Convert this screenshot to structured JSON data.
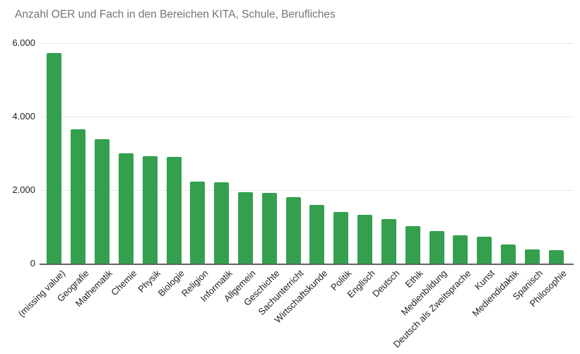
{
  "header": {
    "title": "Anzahl OER und Fach in den Bereichen KITA, Schule, Berufliches"
  },
  "chart_data": {
    "type": "bar",
    "title": "Anzahl OER und Fach in den Bereichen KITA, Schule, Berufliches",
    "categories": [
      "(missing value)",
      "Geografie",
      "Mathematik",
      "Chemie",
      "Physik",
      "Biologie",
      "Religion",
      "Informatik",
      "Allgemein",
      "Geschichte",
      "Sachunterricht",
      "Wirtschaftskunde",
      "Politik",
      "Englisch",
      "Deutsch",
      "Ethik",
      "Medienbildung",
      "Deutsch als Zweitsprache",
      "Kunst",
      "Mediendidaktik",
      "Spanisch",
      "Philosophie"
    ],
    "values": [
      5740,
      3650,
      3380,
      3000,
      2930,
      2900,
      2240,
      2220,
      1940,
      1920,
      1810,
      1600,
      1400,
      1330,
      1220,
      1010,
      880,
      770,
      730,
      520,
      390,
      360
    ],
    "xlabel": "",
    "ylabel": "",
    "ylim": [
      0,
      6000
    ],
    "ytick_values": [
      0,
      2000,
      4000,
      6000
    ],
    "ytick_labels": [
      "0",
      "2.000",
      "4.000",
      "6.000"
    ],
    "grid": true,
    "legend": "none",
    "colors": {
      "bar": "#34a04e",
      "grid": "#e6e6e6",
      "axis_line": "#5f6368",
      "title": "#757575",
      "tick_label": "#1f1f1f",
      "background": "#ffffff"
    }
  }
}
